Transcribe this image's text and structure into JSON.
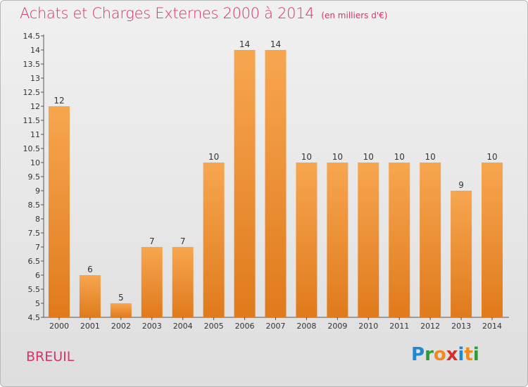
{
  "header": {
    "title": "Achats et Charges Externes 2000 à 2014",
    "unit": "(en milliers d'€)"
  },
  "footer": {
    "commune": "BREUIL",
    "logo": [
      "P",
      "r",
      "o",
      "x",
      "i",
      "t",
      "i"
    ]
  },
  "colors": {
    "title": "#d6346a",
    "bar_top": "#f7a650",
    "bar_bottom": "#e07a1c",
    "logo": [
      "#1e88d0",
      "#2e9b3a",
      "#f08a1c",
      "#d62d2d",
      "#1e88d0",
      "#f08a1c",
      "#2e9b3a"
    ]
  },
  "chart_data": {
    "type": "bar",
    "categories": [
      "2000",
      "2001",
      "2002",
      "2003",
      "2004",
      "2005",
      "2006",
      "2007",
      "2008",
      "2009",
      "2010",
      "2011",
      "2012",
      "2013",
      "2014"
    ],
    "values": [
      12,
      6,
      5,
      7,
      7,
      10,
      14,
      14,
      10,
      10,
      10,
      10,
      10,
      9,
      10
    ],
    "value_labels": [
      "12",
      "6",
      "5",
      "7",
      "7",
      "10",
      "14",
      "14",
      "10",
      "10",
      "10",
      "10",
      "10",
      "9",
      "10"
    ],
    "ylim": [
      4.5,
      14.5
    ],
    "yticks": [
      "4.5",
      "5",
      "5.5",
      "6",
      "6.5",
      "7",
      "7.5",
      "8",
      "8.5",
      "9",
      "9.5",
      "10",
      "10.5",
      "11",
      "11.5",
      "12",
      "12.5",
      "13",
      "13.5",
      "14",
      "14.5"
    ],
    "title": "Achats et Charges Externes 2000 à 2014",
    "xlabel": "",
    "ylabel": "",
    "grid": false
  }
}
